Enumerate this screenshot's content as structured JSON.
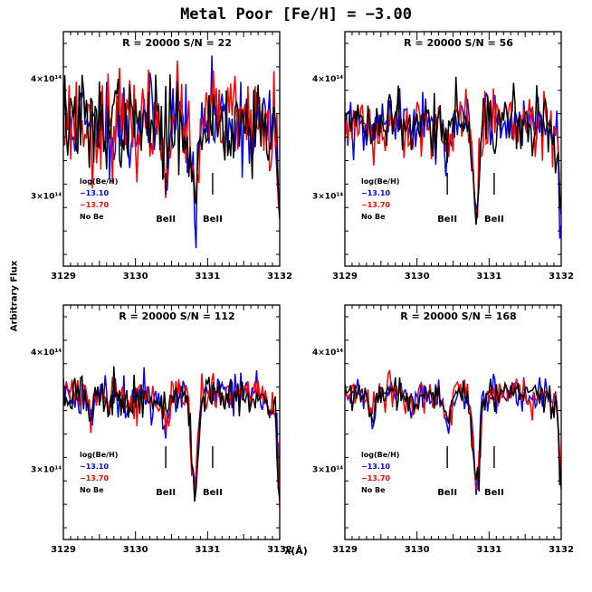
{
  "figure": {
    "title": "Metal Poor [Fe/H] = −3.00",
    "xlabel": "λ(Å)",
    "ylabel": "Arbitrary Flux"
  },
  "legend_labels": [
    "log(Be/H)",
    "−13.10",
    "−13.70",
    "No Be"
  ],
  "line_labels": [
    "BeII",
    "BeII"
  ],
  "colors": {
    "be_1310": "#0000ff",
    "be_1370": "#ff0000",
    "no_be": "#000000"
  },
  "chart_data": [
    {
      "type": "line",
      "title": "R = 20000 S/N = 22",
      "snr": 22,
      "xlim": [
        3129,
        3132
      ],
      "ylim": [
        240000000000000.0,
        440000000000000.0
      ],
      "xticks": [
        "3129",
        "3130",
        "3131",
        "3132"
      ],
      "yticks": [
        {
          "value": 300000000000000.0,
          "label": "3×10¹⁴"
        },
        {
          "value": 400000000000000.0,
          "label": "4×10¹⁴"
        }
      ],
      "line_markers": [
        3130.42,
        3131.07
      ],
      "series": [
        {
          "name": "−13.10",
          "color": "#0000ff"
        },
        {
          "name": "−13.70",
          "color": "#ff0000"
        },
        {
          "name": "No Be",
          "color": "#000000"
        }
      ]
    },
    {
      "type": "line",
      "title": "R = 20000 S/N = 56",
      "snr": 56,
      "xlim": [
        3129,
        3132
      ],
      "ylim": [
        240000000000000.0,
        440000000000000.0
      ],
      "xticks": [
        "3129",
        "3130",
        "3131",
        "3132"
      ],
      "yticks": [
        {
          "value": 300000000000000.0,
          "label": "3×10¹⁴"
        },
        {
          "value": 400000000000000.0,
          "label": "4×10¹⁴"
        }
      ],
      "line_markers": [
        3130.42,
        3131.07
      ],
      "series": [
        {
          "name": "−13.10",
          "color": "#0000ff"
        },
        {
          "name": "−13.70",
          "color": "#ff0000"
        },
        {
          "name": "No Be",
          "color": "#000000"
        }
      ]
    },
    {
      "type": "line",
      "title": "R = 20000 S/N = 112",
      "snr": 112,
      "xlim": [
        3129,
        3132
      ],
      "ylim": [
        240000000000000.0,
        440000000000000.0
      ],
      "xticks": [
        "3129",
        "3130",
        "3131",
        "3132"
      ],
      "yticks": [
        {
          "value": 300000000000000.0,
          "label": "3×10¹⁴"
        },
        {
          "value": 400000000000000.0,
          "label": "4×10¹⁴"
        }
      ],
      "line_markers": [
        3130.42,
        3131.07
      ],
      "series": [
        {
          "name": "−13.10",
          "color": "#0000ff"
        },
        {
          "name": "−13.70",
          "color": "#ff0000"
        },
        {
          "name": "No Be",
          "color": "#000000"
        }
      ]
    },
    {
      "type": "line",
      "title": "R = 20000 S/N = 168",
      "snr": 168,
      "xlim": [
        3129,
        3132
      ],
      "ylim": [
        240000000000000.0,
        440000000000000.0
      ],
      "xticks": [
        "3129",
        "3130",
        "3131",
        "3132"
      ],
      "yticks": [
        {
          "value": 300000000000000.0,
          "label": "3×10¹⁴"
        },
        {
          "value": 400000000000000.0,
          "label": "4×10¹⁴"
        }
      ],
      "line_markers": [
        3130.42,
        3131.07
      ],
      "series": [
        {
          "name": "−13.10",
          "color": "#0000ff"
        },
        {
          "name": "−13.70",
          "color": "#ff0000"
        },
        {
          "name": "No Be",
          "color": "#000000"
        }
      ]
    }
  ]
}
